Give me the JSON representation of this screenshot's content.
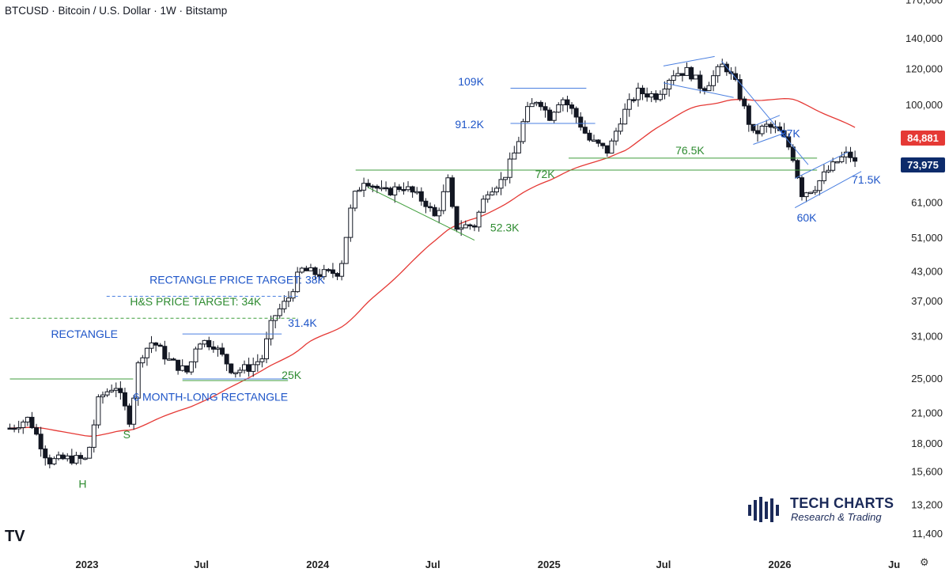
{
  "header": {
    "title": "BTCUSD · Bitcoin / U.S. Dollar · 1W · Bitstamp"
  },
  "chart_data": {
    "type": "candlestick",
    "scale": "log",
    "ylim": [
      10500,
      172000
    ],
    "y_ticks": [
      170000,
      140000,
      120000,
      100000,
      84881,
      73975,
      61000,
      51000,
      43000,
      37000,
      31000,
      25000,
      21000,
      18000,
      15600,
      13200,
      11400
    ],
    "y_tick_labels": [
      "170,000",
      "140,000",
      "120,000",
      "100,000",
      "",
      "",
      "61,000",
      "51,000",
      "43,000",
      "37,000",
      "31,000",
      "25,000",
      "21,000",
      "18,000",
      "15,600",
      "13,200",
      "11,400"
    ],
    "x_ticks": [
      {
        "label": "2023",
        "date": "2023-01-01",
        "bold": true
      },
      {
        "label": "Jul",
        "date": "2023-07-01",
        "bold": false
      },
      {
        "label": "2024",
        "date": "2024-01-01",
        "bold": true
      },
      {
        "label": "Jul",
        "date": "2024-07-01",
        "bold": false
      },
      {
        "label": "2025",
        "date": "2025-01-01",
        "bold": true
      },
      {
        "label": "Jul",
        "date": "2025-07-01",
        "bold": false
      },
      {
        "label": "2026",
        "date": "2026-01-01",
        "bold": true
      },
      {
        "label": "Ju",
        "date": "2026-07-01",
        "bold": false
      }
    ],
    "price_labels": [
      {
        "label": "84,881",
        "value": 84881,
        "color": "#e53935",
        "series": "moving average"
      },
      {
        "label": "73,975",
        "value": 73975,
        "color": "#0d2b6b",
        "series": "last price"
      }
    ],
    "weekly_closes": [
      {
        "date": "2022-09-01",
        "close": 19500
      },
      {
        "date": "2022-10-01",
        "close": 20500
      },
      {
        "date": "2022-11-01",
        "close": 16500
      },
      {
        "date": "2022-12-01",
        "close": 16700
      },
      {
        "date": "2023-01-01",
        "close": 16600
      },
      {
        "date": "2023-01-20",
        "close": 22700
      },
      {
        "date": "2023-02-15",
        "close": 24300
      },
      {
        "date": "2023-03-10",
        "close": 20200
      },
      {
        "date": "2023-03-25",
        "close": 28000
      },
      {
        "date": "2023-04-15",
        "close": 30300
      },
      {
        "date": "2023-05-10",
        "close": 27500
      },
      {
        "date": "2023-06-10",
        "close": 25800
      },
      {
        "date": "2023-06-25",
        "close": 30500
      },
      {
        "date": "2023-07-20",
        "close": 29800
      },
      {
        "date": "2023-08-20",
        "close": 26000
      },
      {
        "date": "2023-09-15",
        "close": 26500
      },
      {
        "date": "2023-10-05",
        "close": 27800
      },
      {
        "date": "2023-10-22",
        "close": 34000
      },
      {
        "date": "2023-11-15",
        "close": 37500
      },
      {
        "date": "2023-12-05",
        "close": 43500
      },
      {
        "date": "2024-01-01",
        "close": 42500
      },
      {
        "date": "2024-02-05",
        "close": 43000
      },
      {
        "date": "2024-02-25",
        "close": 62000
      },
      {
        "date": "2024-03-15",
        "close": 69000
      },
      {
        "date": "2024-04-15",
        "close": 64000
      },
      {
        "date": "2024-05-15",
        "close": 66500
      },
      {
        "date": "2024-06-20",
        "close": 61000
      },
      {
        "date": "2024-07-05",
        "close": 56500
      },
      {
        "date": "2024-07-25",
        "close": 68000
      },
      {
        "date": "2024-08-05",
        "close": 54000
      },
      {
        "date": "2024-09-05",
        "close": 54500
      },
      {
        "date": "2024-09-25",
        "close": 65000
      },
      {
        "date": "2024-10-20",
        "close": 68500
      },
      {
        "date": "2024-11-10",
        "close": 80000
      },
      {
        "date": "2024-11-25",
        "close": 96000
      },
      {
        "date": "2024-12-15",
        "close": 104000
      },
      {
        "date": "2025-01-01",
        "close": 94000
      },
      {
        "date": "2025-01-20",
        "close": 104500
      },
      {
        "date": "2025-02-10",
        "close": 96000
      },
      {
        "date": "2025-03-05",
        "close": 84000
      },
      {
        "date": "2025-04-05",
        "close": 79000
      },
      {
        "date": "2025-04-25",
        "close": 94000
      },
      {
        "date": "2025-05-20",
        "close": 107000
      },
      {
        "date": "2025-06-20",
        "close": 105000
      },
      {
        "date": "2025-07-15",
        "close": 117500
      },
      {
        "date": "2025-08-10",
        "close": 119000
      },
      {
        "date": "2025-09-01",
        "close": 108500
      },
      {
        "date": "2025-10-05",
        "close": 123500
      },
      {
        "date": "2025-10-25",
        "close": 110000
      },
      {
        "date": "2025-11-20",
        "close": 86000
      },
      {
        "date": "2025-12-10",
        "close": 90000
      },
      {
        "date": "2025-12-30",
        "close": 88000
      },
      {
        "date": "2026-01-20",
        "close": 79000
      },
      {
        "date": "2026-02-05",
        "close": 64000
      },
      {
        "date": "2026-02-25",
        "close": 66000
      },
      {
        "date": "2026-03-15",
        "close": 71000
      },
      {
        "date": "2026-04-01",
        "close": 75000
      },
      {
        "date": "2026-04-20",
        "close": 78500
      },
      {
        "date": "2026-05-01",
        "close": 73975
      }
    ],
    "annotations": [
      {
        "text": "RECTANGLE PRICE TARGET: 38K",
        "color": "#1e55c8"
      },
      {
        "text": "H&S PRICE TARGET: 34K",
        "color": "#2e8b30"
      },
      {
        "text": "RECTANGLE",
        "color": "#1e55c8"
      },
      {
        "text": "31.4K",
        "color": "#1e55c8"
      },
      {
        "text": "25K",
        "color": "#2e8b30"
      },
      {
        "text": "6 MONTH-LONG RECTANGLE",
        "color": "#1e55c8"
      },
      {
        "text": "S",
        "color": "#2e8b30"
      },
      {
        "text": "H",
        "color": "#2e8b30"
      },
      {
        "text": "109K",
        "color": "#1e55c8"
      },
      {
        "text": "91.2K",
        "color": "#1e55c8"
      },
      {
        "text": "72K",
        "color": "#2e8b30"
      },
      {
        "text": "76.5K",
        "color": "#2e8b30"
      },
      {
        "text": "52.3K",
        "color": "#2e8b30"
      },
      {
        "text": "87K",
        "color": "#1e55c8"
      },
      {
        "text": "60K",
        "color": "#1e55c8"
      },
      {
        "text": "71.5K",
        "color": "#1e55c8"
      }
    ],
    "colors": {
      "candle": "#131722",
      "moving_average": "#e53935",
      "blue_lines": "#4a7fe0",
      "green_lines": "#3f9e3c",
      "last_price": "#0d2b6b"
    }
  },
  "brand": {
    "name": "TECH CHARTS",
    "tagline": "Research & Trading",
    "icon": "bar-chart-logo-icon"
  },
  "platform": {
    "logo_text": "TV",
    "logo_icon": "tradingview-logo-icon",
    "settings_icon": "gear-icon",
    "settings_glyph": "⚙"
  }
}
